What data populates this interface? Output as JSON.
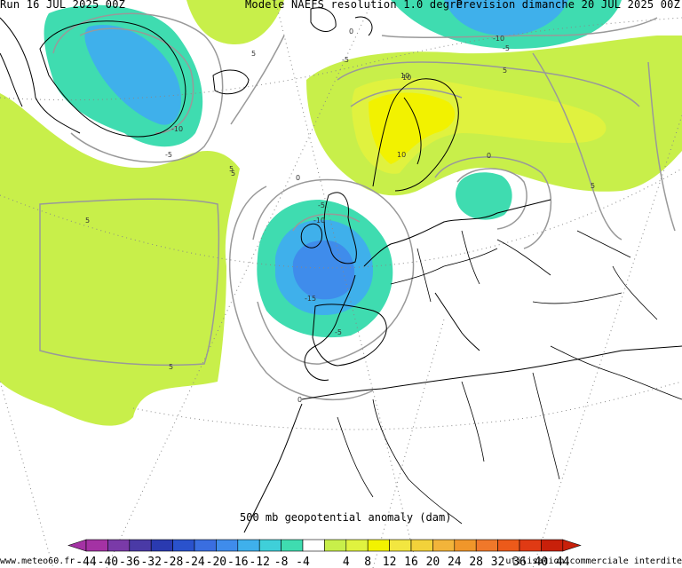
{
  "header": {
    "run": "Run 16 JUL 2025 00Z",
    "model": "Modele NAEFS resolution 1.0 degre",
    "forecast": "Prevision dimanche 20 JUL 2025 00Z"
  },
  "caption": "500 mb geopotential anomaly (dam)",
  "footer": {
    "site": "www.meteo60.fr",
    "notice": "utilisation commerciale interdite"
  },
  "colorbar": {
    "ticks": [
      "-44",
      "-40",
      "-36",
      "-32",
      "-28",
      "-24",
      "-20",
      "-16",
      "-12",
      "-8",
      "-4",
      "4",
      "8",
      "12",
      "16",
      "20",
      "24",
      "28",
      "32",
      "36",
      "40",
      "44"
    ],
    "colors": [
      "#a432a4",
      "#7a3aa8",
      "#4a3aa6",
      "#2a3ab0",
      "#2a52cc",
      "#3a6ee0",
      "#3f8ceb",
      "#3fb0eb",
      "#3fcfd9",
      "#3fdcb0",
      "#ffffff",
      "#c8ef4a",
      "#e0f23f",
      "#f2f200",
      "#f2e640",
      "#f2d23a",
      "#f2b43a",
      "#f0962a",
      "#f0782a",
      "#ec5a1a",
      "#e03a14",
      "#c8200a"
    ]
  },
  "contour_labels": [
    "5",
    "5",
    "-10",
    "-5",
    "10",
    "-5",
    "-5",
    "-10",
    "-15",
    "-5",
    "5",
    "5",
    "-10",
    "-5",
    "5",
    "10",
    "10",
    "0",
    "0",
    "0",
    "5",
    "0",
    "5"
  ]
}
